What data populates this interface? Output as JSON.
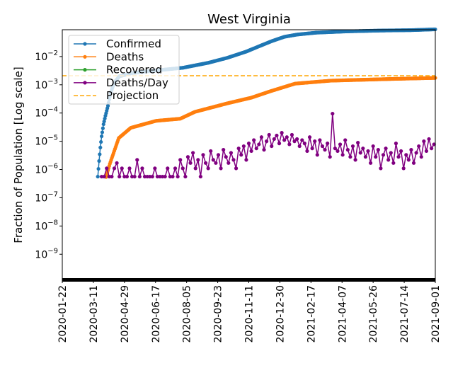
{
  "chart_data": {
    "type": "line",
    "title": "West Virginia",
    "xlabel": "",
    "ylabel": "Fraction of Population [Log scale]",
    "yscale": "log",
    "ylim": [
      1.2e-10,
      0.089
    ],
    "x_unit": "days since 2020-01-22",
    "xlim": [
      0,
      588
    ],
    "x_ticks": [
      {
        "day": 0,
        "label": "2020-01-22"
      },
      {
        "day": 49,
        "label": "2020-03-11"
      },
      {
        "day": 98,
        "label": "2020-04-29"
      },
      {
        "day": 147,
        "label": "2020-06-17"
      },
      {
        "day": 196,
        "label": "2020-08-05"
      },
      {
        "day": 245,
        "label": "2020-09-23"
      },
      {
        "day": 294,
        "label": "2020-11-11"
      },
      {
        "day": 343,
        "label": "2020-12-30"
      },
      {
        "day": 392,
        "label": "2021-02-17"
      },
      {
        "day": 441,
        "label": "2021-04-07"
      },
      {
        "day": 490,
        "label": "2021-05-26"
      },
      {
        "day": 539,
        "label": "2021-07-14"
      },
      {
        "day": 588,
        "label": "2021-09-01"
      }
    ],
    "y_ticks": [
      {
        "value": 0.01,
        "base": "10",
        "exp": "−2"
      },
      {
        "value": 0.001,
        "base": "10",
        "exp": "−3"
      },
      {
        "value": 0.0001,
        "base": "10",
        "exp": "−4"
      },
      {
        "value": 1e-05,
        "base": "10",
        "exp": "−5"
      },
      {
        "value": 1e-06,
        "base": "10",
        "exp": "−6"
      },
      {
        "value": 1e-07,
        "base": "10",
        "exp": "−7"
      },
      {
        "value": 1e-08,
        "base": "10",
        "exp": "−8"
      },
      {
        "value": 1e-09,
        "base": "10",
        "exp": "−9"
      }
    ],
    "legend": {
      "placement": "top-left"
    },
    "series": [
      {
        "name": "Confirmed",
        "color": "#1f77b4",
        "style": "line-marker",
        "points": [
          [
            56,
            5.6e-07
          ],
          [
            58,
            2e-06
          ],
          [
            60,
            6e-06
          ],
          [
            62,
            1.5e-05
          ],
          [
            65,
            4e-05
          ],
          [
            68,
            8e-05
          ],
          [
            72,
            0.00018
          ],
          [
            76,
            0.0005
          ],
          [
            82,
            0.0012
          ],
          [
            90,
            0.002
          ],
          [
            110,
            0.0026
          ],
          [
            140,
            0.0031
          ],
          [
            190,
            0.004
          ],
          [
            230,
            0.006
          ],
          [
            260,
            0.009
          ],
          [
            290,
            0.015
          ],
          [
            310,
            0.023
          ],
          [
            330,
            0.035
          ],
          [
            350,
            0.05
          ],
          [
            370,
            0.06
          ],
          [
            400,
            0.07
          ],
          [
            450,
            0.078
          ],
          [
            500,
            0.083
          ],
          [
            550,
            0.086
          ],
          [
            588,
            0.092
          ]
        ]
      },
      {
        "name": "Deaths",
        "color": "#ff7f0e",
        "style": "line-marker",
        "points": [
          [
            69,
            5.4e-07
          ],
          [
            75,
            1.6e-06
          ],
          [
            89,
            1.3e-05
          ],
          [
            108,
            3e-05
          ],
          [
            148,
            5.3e-05
          ],
          [
            186,
            6.3e-05
          ],
          [
            209,
            0.00011
          ],
          [
            260,
            0.00022
          ],
          [
            298,
            0.00035
          ],
          [
            329,
            0.0006
          ],
          [
            367,
            0.0011
          ],
          [
            423,
            0.0014
          ],
          [
            515,
            0.0016
          ],
          [
            588,
            0.00175
          ]
        ]
      },
      {
        "name": "Recovered",
        "color": "#2ca02c",
        "style": "line-marker",
        "points": []
      },
      {
        "name": "Deaths/Day",
        "color": "#800080",
        "style": "line-marker",
        "start_day": 62,
        "step_days": 4,
        "values": [
          5.6e-07,
          5.6e-07,
          1.1e-06,
          5.6e-07,
          5.6e-07,
          1.1e-06,
          1.7e-06,
          5.6e-07,
          1.1e-06,
          5.6e-07,
          5.6e-07,
          1.1e-06,
          5.6e-07,
          5.6e-07,
          2.2e-06,
          5.6e-07,
          1.1e-06,
          5.6e-07,
          5.6e-07,
          5.6e-07,
          5.6e-07,
          1.1e-06,
          5.6e-07,
          5.6e-07,
          5.6e-07,
          5.6e-07,
          1.1e-06,
          5.6e-07,
          5.6e-07,
          1.1e-06,
          5.6e-07,
          2.2e-06,
          1.1e-06,
          5.6e-07,
          2.8e-06,
          1.7e-06,
          3.9e-06,
          1.1e-06,
          2.2e-06,
          5.6e-07,
          3.3e-06,
          1.7e-06,
          1.1e-06,
          4.5e-06,
          2.2e-06,
          1.7e-06,
          3.3e-06,
          1.1e-06,
          5e-06,
          2.8e-06,
          1.7e-06,
          3.9e-06,
          2.2e-06,
          1.1e-06,
          5.6e-06,
          3.3e-06,
          6.7e-06,
          2.2e-06,
          8.4e-06,
          4.5e-06,
          1.1e-05,
          5.6e-06,
          7.8e-06,
          1.4e-05,
          5e-06,
          1e-05,
          1.7e-05,
          6.7e-06,
          1.2e-05,
          1.6e-05,
          8.4e-06,
          2e-05,
          1.1e-05,
          1.4e-05,
          7.8e-06,
          1.7e-05,
          1e-05,
          1.2e-05,
          6.7e-06,
          1.1e-05,
          8.4e-06,
          4.5e-06,
          1.4e-05,
          5.6e-06,
          1e-05,
          3.3e-06,
          1.1e-05,
          6.7e-06,
          5e-06,
          8.4e-06,
          2.8e-06,
          9.5e-05,
          5.6e-06,
          4.5e-06,
          7.8e-06,
          3.3e-06,
          1.1e-05,
          5e-06,
          2.8e-06,
          6.7e-06,
          2.2e-06,
          8.9e-06,
          3.9e-06,
          5.6e-06,
          2.8e-06,
          4.5e-06,
          1.7e-06,
          6.7e-06,
          2.8e-06,
          5e-06,
          1.1e-06,
          3.3e-06,
          5.6e-06,
          2.2e-06,
          3.9e-06,
          1.7e-06,
          8.4e-06,
          2.8e-06,
          4.5e-06,
          1.1e-06,
          3.3e-06,
          2.2e-06,
          5e-06,
          1.7e-06,
          3.9e-06,
          6.7e-06,
          2.8e-06,
          1e-05,
          4.5e-06,
          1.2e-05,
          5.6e-06,
          7.8e-06
        ]
      },
      {
        "name": "Projection",
        "color": "#ffa500",
        "style": "dashed",
        "value": 0.0021
      }
    ]
  }
}
